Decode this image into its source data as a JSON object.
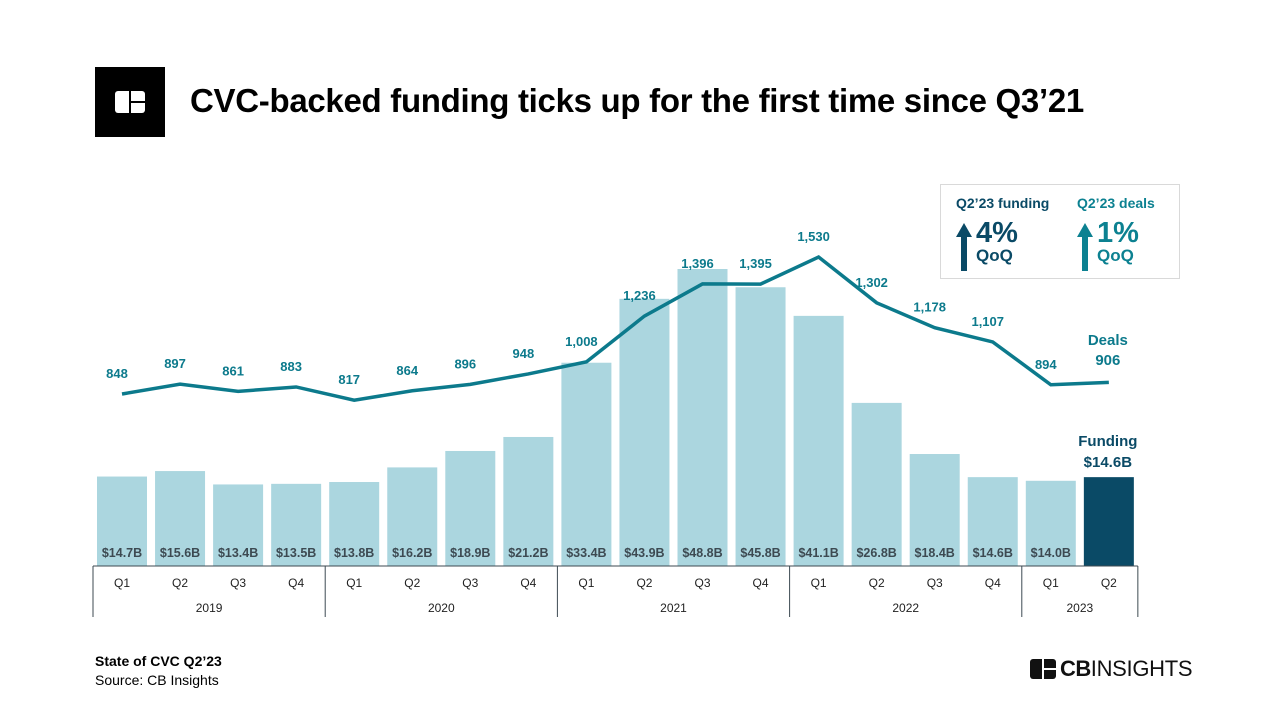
{
  "header": {
    "title": "CVC-backed funding ticks up for the first time since Q3’21",
    "logo_icon": "cb-insights-logo-icon"
  },
  "kpis": {
    "funding": {
      "label": "Q2’23 funding",
      "direction": "up",
      "value": "4%",
      "sub": "QoQ",
      "color": "#0a4a66"
    },
    "deals": {
      "label": "Q2’23 deals",
      "direction": "up",
      "value": "1%",
      "sub": "QoQ",
      "color": "#0c8191"
    }
  },
  "chart_data": {
    "type": "bar+line",
    "title": "CVC-backed funding ticks up for the first time since Q3’21",
    "categories": [
      "Q1",
      "Q2",
      "Q3",
      "Q4",
      "Q1",
      "Q2",
      "Q3",
      "Q4",
      "Q1",
      "Q2",
      "Q3",
      "Q4",
      "Q1",
      "Q2",
      "Q3",
      "Q4",
      "Q1",
      "Q2"
    ],
    "years": [
      {
        "label": "2019",
        "count": 4
      },
      {
        "label": "2020",
        "count": 4
      },
      {
        "label": "2021",
        "count": 4
      },
      {
        "label": "2022",
        "count": 4
      },
      {
        "label": "2023",
        "count": 2
      }
    ],
    "series": [
      {
        "name": "Funding",
        "type": "bar",
        "unit": "$B",
        "values": [
          14.7,
          15.6,
          13.4,
          13.5,
          13.8,
          16.2,
          18.9,
          21.2,
          33.4,
          43.9,
          48.8,
          45.8,
          41.1,
          26.8,
          18.4,
          14.6,
          14.0,
          14.6
        ],
        "labels": [
          "$14.7B",
          "$15.6B",
          "$13.4B",
          "$13.5B",
          "$13.8B",
          "$16.2B",
          "$18.9B",
          "$21.2B",
          "$33.4B",
          "$43.9B",
          "$48.8B",
          "$45.8B",
          "$41.1B",
          "$26.8B",
          "$18.4B",
          "$14.6B",
          "$14.0B",
          ""
        ],
        "color": "#abd6df",
        "highlight_color": "#0a4a66",
        "highlight_index": 17,
        "callout": {
          "title": "Funding",
          "value": "$14.6B"
        }
      },
      {
        "name": "Deals",
        "type": "line",
        "values": [
          848,
          897,
          861,
          883,
          817,
          864,
          896,
          948,
          1008,
          1236,
          1396,
          1395,
          1530,
          1302,
          1178,
          1107,
          894,
          906
        ],
        "labels": [
          "848",
          "897",
          "861",
          "883",
          "817",
          "864",
          "896",
          "948",
          "1,008",
          "1,236",
          "1,396",
          "1,395",
          "1,530",
          "1,302",
          "1,178",
          "1,107",
          "894",
          ""
        ],
        "color": "#0c7a8c",
        "callout": {
          "title": "Deals",
          "value": "906"
        }
      }
    ],
    "xlabel": "",
    "ylabel": "",
    "grid": false,
    "legend": "none"
  },
  "footer": {
    "report": "State of CVC Q2’23",
    "source": "Source: CB Insights",
    "brand_bold": "CB",
    "brand_light": "INSIGHTS"
  }
}
